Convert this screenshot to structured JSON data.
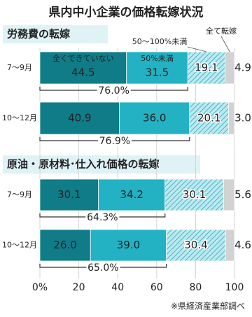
{
  "title": "県内中小企業の価格転嫁状況",
  "source": "※県経済産業部調べ",
  "chart_data": [
    {
      "type": "bar",
      "subtitle": "労務費の転嫁",
      "categories": [
        "7～9月",
        "10～12月"
      ],
      "series": [
        {
          "name": "全くできていない",
          "color": "#0f7c88",
          "values": [
            44.5,
            40.9
          ]
        },
        {
          "name": "50%未満",
          "color": "#22b2c4",
          "values": [
            31.5,
            36.0
          ],
          "value_labels": [
            "31.5",
            "36.0"
          ]
        },
        {
          "name": "50～100%未満",
          "color": "#8fd6df",
          "values": [
            19.1,
            20.1
          ]
        },
        {
          "name": "全て転嫁",
          "color": "#d2d2d2",
          "values": [
            4.9,
            3.0
          ],
          "value_labels": [
            "4.9",
            "3.0"
          ]
        }
      ],
      "totals": [
        76.0,
        76.9
      ],
      "total_labels": [
        "76.0%",
        "76.9%"
      ],
      "xlim": [
        0,
        100
      ]
    },
    {
      "type": "bar",
      "subtitle": "原油・原材料･仕入れ価格の転嫁",
      "categories": [
        "7～9月",
        "10～12月"
      ],
      "series": [
        {
          "color": "#0f7c88",
          "values": [
            30.1,
            26.0
          ],
          "value_labels": [
            "30.1",
            "26.0"
          ]
        },
        {
          "color": "#22b2c4",
          "values": [
            34.2,
            39.0
          ],
          "value_labels": [
            "34.2",
            "39.0"
          ]
        },
        {
          "color": "#8fd6df",
          "values": [
            30.1,
            30.4
          ]
        },
        {
          "color": "#d2d2d2",
          "values": [
            5.6,
            4.6
          ]
        }
      ],
      "totals": [
        64.3,
        65.0
      ],
      "total_labels": [
        "64.3%",
        "65.0%"
      ],
      "xlim": [
        0,
        100
      ],
      "xticks": [
        {
          "value": 0,
          "label": "0%"
        },
        20,
        40,
        60,
        80,
        100
      ]
    }
  ]
}
